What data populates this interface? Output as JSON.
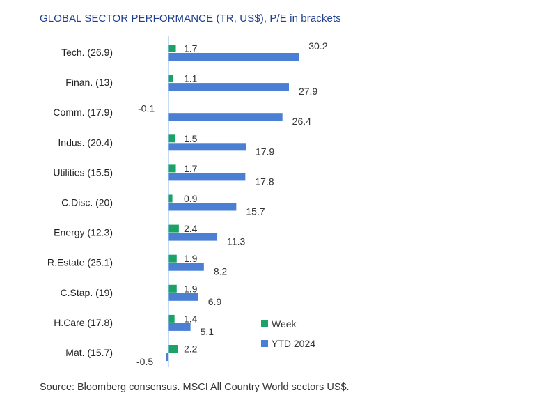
{
  "chart_data": {
    "type": "bar",
    "orientation": "horizontal",
    "title": "GLOBAL SECTOR PERFORMANCE (TR, US$), P/E in brackets",
    "categories": [
      "Tech. (26.9)",
      "Finan. (13)",
      "Comm. (17.9)",
      "Indus. (20.4)",
      "Utilities (15.5)",
      "C.Disc. (20)",
      "Energy (12.3)",
      "R.Estate (25.1)",
      "C.Stap. (19)",
      "H.Care (17.8)",
      "Mat. (15.7)"
    ],
    "series": [
      {
        "name": "Week",
        "color": "#1aa267",
        "values": [
          1.7,
          1.1,
          -0.1,
          1.5,
          1.7,
          0.9,
          2.4,
          1.9,
          1.9,
          1.4,
          2.2
        ],
        "labels": [
          "1.7",
          "1.1",
          "-0.1",
          "1.5",
          "1.7",
          "0.9",
          "2.4",
          "1.9",
          "1.9",
          "1.4",
          "2.2"
        ]
      },
      {
        "name": "YTD 2024",
        "color": "#4a7fd4",
        "values": [
          30.2,
          27.9,
          26.4,
          17.9,
          17.8,
          15.7,
          11.3,
          8.2,
          6.9,
          5.1,
          -0.5
        ],
        "labels": [
          "30.2",
          "27.9",
          "26.4",
          "17.9",
          "17.8",
          "15.7",
          "11.3",
          "8.2",
          "6.9",
          "5.1",
          "-0.5"
        ]
      }
    ],
    "xlabel": "",
    "ylabel": "",
    "xlim": [
      -0.5,
      32.5
    ],
    "grid": false,
    "legend_position": "bottom-right"
  },
  "source_note": "Source: Bloomberg consensus. MSCI All Country World sectors US$.",
  "axis_color": "#9cc3e8"
}
